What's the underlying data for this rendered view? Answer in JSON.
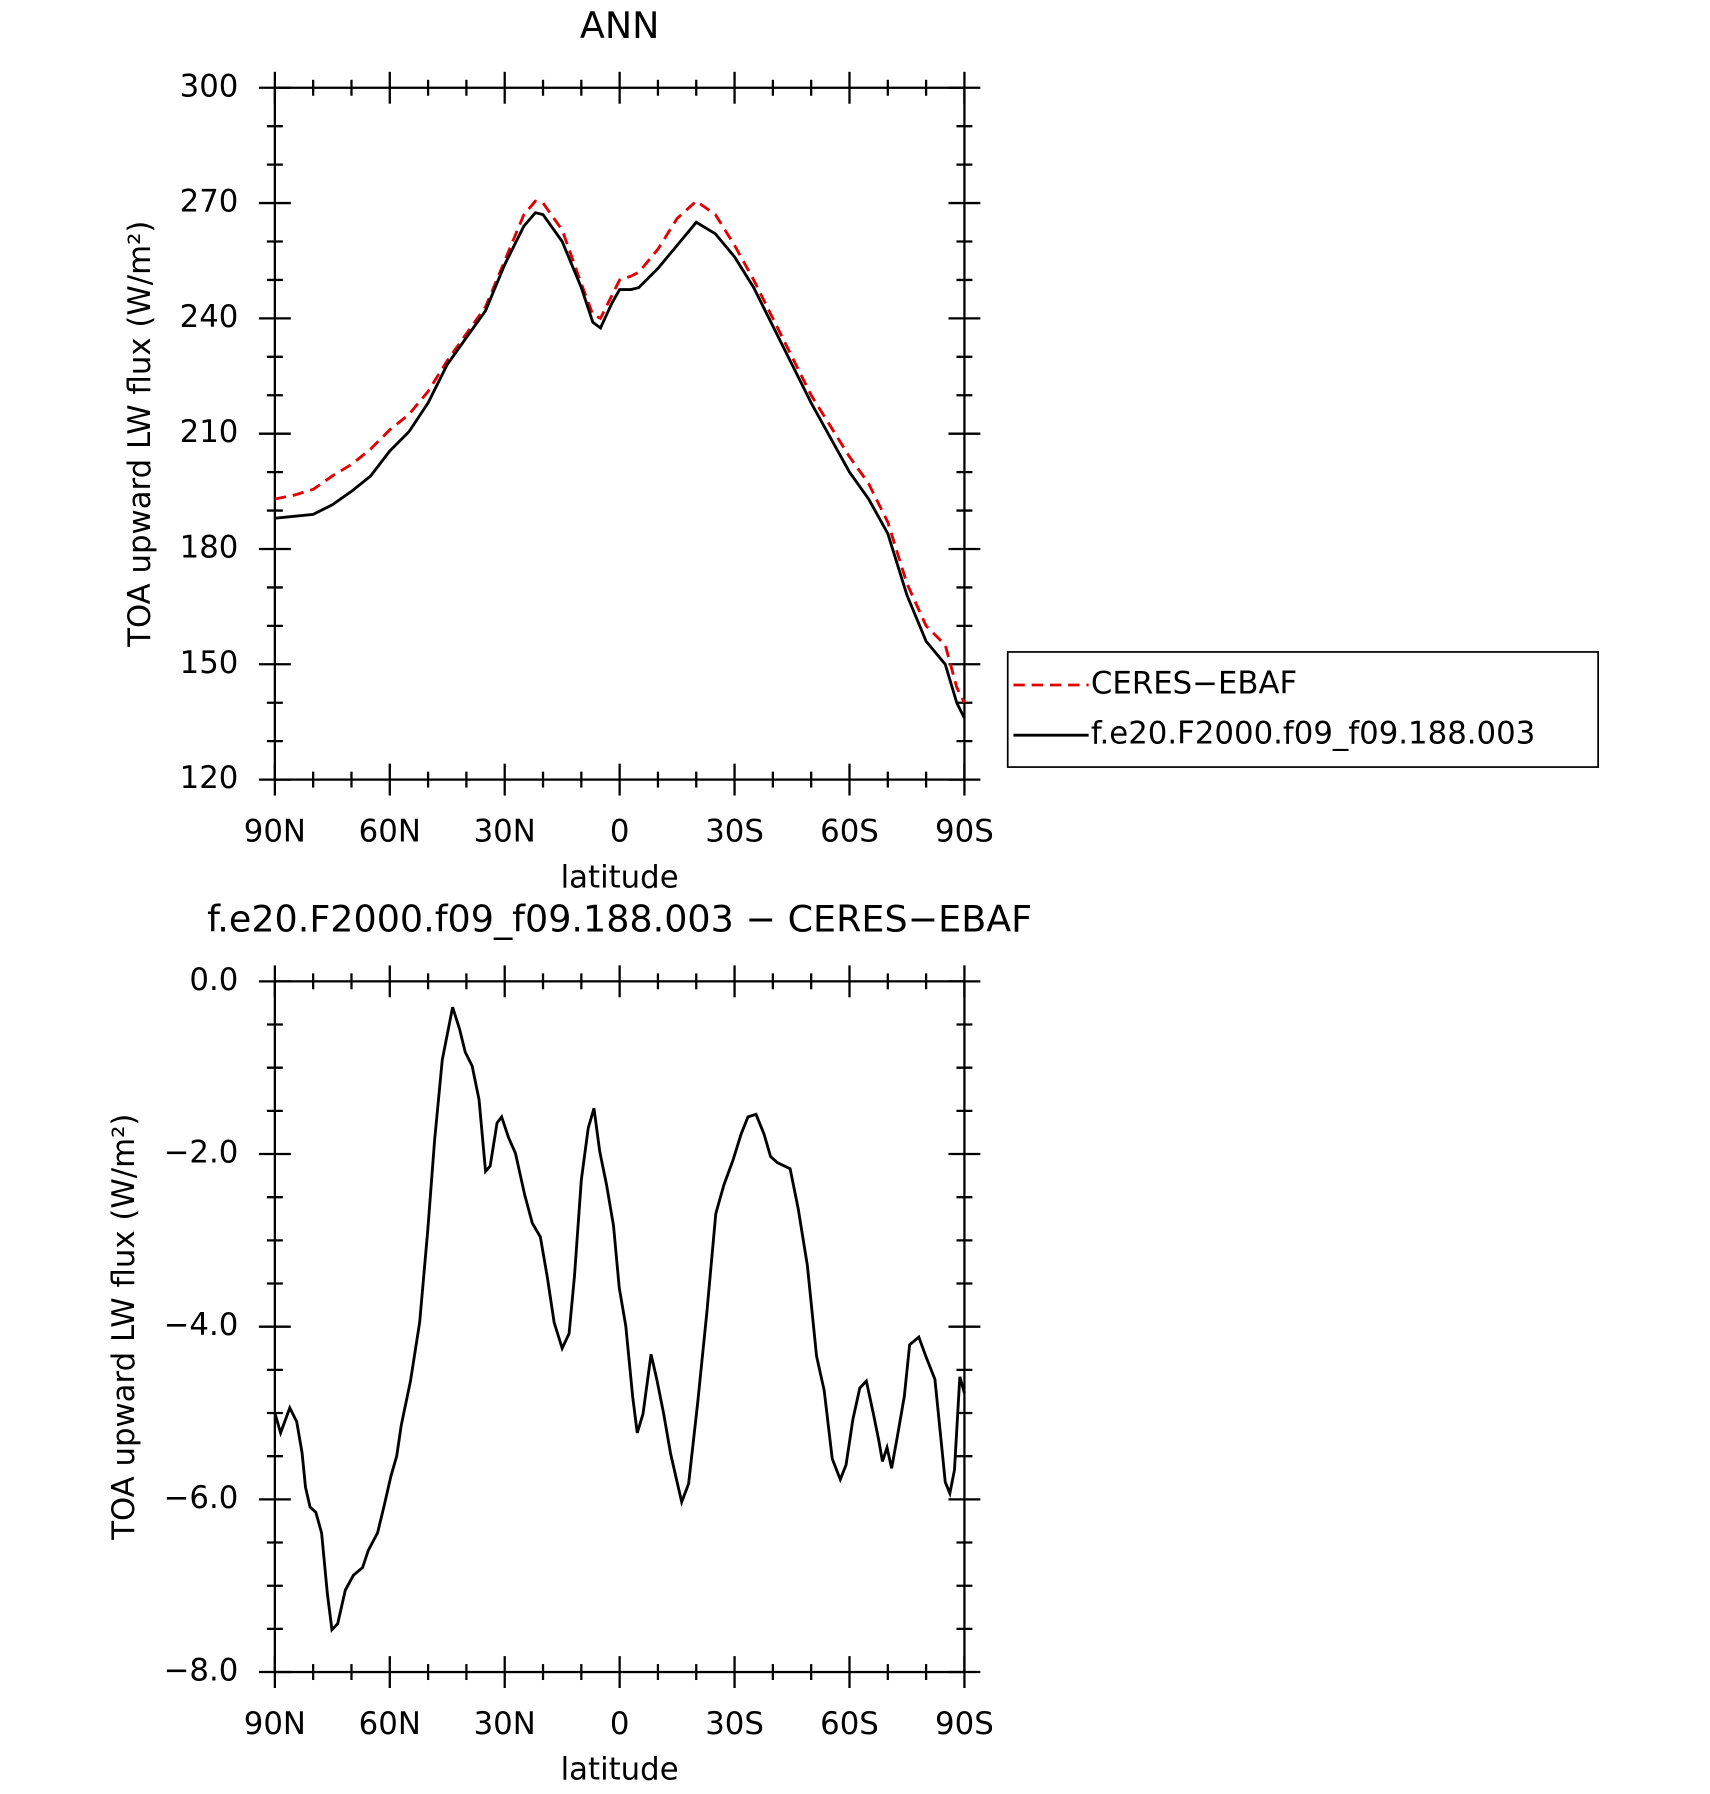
{
  "chart_data": [
    {
      "type": "line",
      "title": "ANN",
      "xlabel": "latitude",
      "ylabel": "TOA upward LW flux (W/m²)",
      "xlim": [
        90,
        -90
      ],
      "xticks": [
        {
          "value": 90,
          "label": "90N"
        },
        {
          "value": 60,
          "label": "60N"
        },
        {
          "value": 30,
          "label": "30N"
        },
        0,
        {
          "value": -30,
          "label": "30S"
        },
        {
          "value": -60,
          "label": "60S"
        },
        {
          "value": -90,
          "label": "90S"
        }
      ],
      "ylim": [
        120,
        300
      ],
      "yticks": [
        120,
        150,
        180,
        210,
        240,
        270,
        300
      ],
      "legend": "outside-right",
      "x": [
        90,
        85,
        80,
        75,
        70,
        65,
        60,
        55,
        50,
        45,
        40,
        35,
        30,
        25,
        22,
        20,
        15,
        10,
        7,
        5,
        2,
        0,
        -3,
        -5,
        -10,
        -15,
        -20,
        -25,
        -30,
        -35,
        -40,
        -45,
        -50,
        -55,
        -60,
        -65,
        -70,
        -75,
        -80,
        -85,
        -88,
        -90
      ],
      "series": [
        {
          "name": "CERES−EBAF",
          "color": "#e00000",
          "linestyle": "dashed",
          "values": [
            193,
            194,
            195.5,
            199,
            202,
            206,
            211,
            215,
            221,
            229,
            236,
            243,
            255,
            267,
            270.5,
            270,
            263,
            249,
            241,
            240,
            246,
            250,
            251,
            252,
            258,
            266,
            270.5,
            267,
            259,
            250,
            240,
            230,
            220,
            212,
            204,
            197,
            187,
            171,
            160,
            155,
            144,
            140
          ]
        },
        {
          "name": "f.e20.F2000.f09_f09.188.003",
          "color": "#000000",
          "linestyle": "solid",
          "values": [
            188,
            188.5,
            189,
            191.5,
            195,
            199,
            205.5,
            210.5,
            218,
            228,
            235,
            242,
            254,
            264,
            267.5,
            267,
            260,
            248,
            239,
            237.5,
            244,
            247.5,
            247.5,
            248,
            253,
            259,
            265,
            262,
            256,
            248,
            238,
            228,
            218,
            209,
            200,
            193,
            184,
            168,
            156,
            150,
            140,
            136
          ]
        }
      ]
    },
    {
      "type": "line",
      "title": "f.e20.F2000.f09_f09.188.003 − CERES−EBAF",
      "xlabel": "latitude",
      "ylabel": "TOA upward LW flux (W/m²)",
      "xlim": [
        90,
        -90
      ],
      "xticks": [
        {
          "value": 90,
          "label": "90N"
        },
        {
          "value": 60,
          "label": "60N"
        },
        {
          "value": 30,
          "label": "30N"
        },
        0,
        {
          "value": -30,
          "label": "30S"
        },
        {
          "value": -60,
          "label": "60S"
        },
        {
          "value": -90,
          "label": "90S"
        }
      ],
      "ylim": [
        -8,
        0
      ],
      "yticks": [
        {
          "value": -8,
          "label": "−8.0"
        },
        {
          "value": -6,
          "label": "−6.0"
        },
        {
          "value": -4,
          "label": "−4.0"
        },
        {
          "value": -2,
          "label": "−2.0"
        },
        {
          "value": 0,
          "label": "0.0"
        }
      ],
      "color": "#000000",
      "x": [
        90,
        88.5,
        86.1,
        84.3,
        82.9,
        82,
        80.8,
        79.3,
        77.8,
        76.3,
        75.1,
        73.6,
        71.6,
        69.5,
        67.1,
        65.6,
        63.2,
        61.4,
        59.7,
        58.2,
        57,
        54.6,
        52.2,
        50.1,
        48.3,
        46.3,
        43.6,
        41.8,
        40.3,
        38.5,
        36.7,
        35,
        33.8,
        32,
        30.8,
        29,
        27.2,
        24.8,
        22.8,
        20.7,
        18.9,
        17.1,
        15,
        13.2,
        11.8,
        10,
        8.2,
        6.7,
        5.2,
        3.4,
        1.6,
        0.1,
        -1.6,
        -3.4,
        -4.6,
        -6.1,
        -8.2,
        -9.7,
        -11.5,
        -13.3,
        -15,
        -16.2,
        -18,
        -20.4,
        -22.8,
        -25.1,
        -27.2,
        -29.6,
        -31.7,
        -33.5,
        -35.6,
        -37.7,
        -39.4,
        -41.2,
        -44.5,
        -46.6,
        -49,
        -51.4,
        -53.4,
        -55.5,
        -57.6,
        -59.1,
        -60.9,
        -62.7,
        -64.4,
        -66.2,
        -67.7,
        -68.6,
        -69.8,
        -71,
        -72.5,
        -74.3,
        -75.7,
        -78.1,
        -79.9,
        -82.3,
        -83.8,
        -85,
        -86.2,
        -87.4,
        -88.8,
        -90
      ],
      "values": [
        -5.0,
        -5.23,
        -4.94,
        -5.1,
        -5.46,
        -5.86,
        -6.09,
        -6.15,
        -6.39,
        -7.09,
        -7.51,
        -7.44,
        -7.05,
        -6.88,
        -6.79,
        -6.59,
        -6.39,
        -6.06,
        -5.73,
        -5.5,
        -5.14,
        -4.63,
        -3.95,
        -2.89,
        -1.84,
        -0.91,
        -0.3,
        -0.55,
        -0.82,
        -0.98,
        -1.37,
        -2.2,
        -2.14,
        -1.64,
        -1.57,
        -1.81,
        -1.99,
        -2.47,
        -2.8,
        -2.96,
        -3.42,
        -3.95,
        -4.25,
        -4.08,
        -3.42,
        -2.3,
        -1.7,
        -1.47,
        -1.97,
        -2.36,
        -2.83,
        -3.55,
        -3.99,
        -4.81,
        -5.23,
        -5.01,
        -4.32,
        -4.61,
        -5.01,
        -5.47,
        -5.8,
        -6.03,
        -5.82,
        -4.87,
        -3.82,
        -2.69,
        -2.36,
        -2.07,
        -1.77,
        -1.57,
        -1.54,
        -1.77,
        -2.03,
        -2.1,
        -2.17,
        -2.63,
        -3.29,
        -4.34,
        -4.74,
        -5.53,
        -5.77,
        -5.6,
        -5.07,
        -4.71,
        -4.63,
        -5.0,
        -5.33,
        -5.56,
        -5.4,
        -5.64,
        -5.27,
        -4.81,
        -4.21,
        -4.12,
        -4.34,
        -4.61,
        -5.27,
        -5.8,
        -5.93,
        -5.66,
        -4.58,
        -4.77
      ]
    }
  ]
}
